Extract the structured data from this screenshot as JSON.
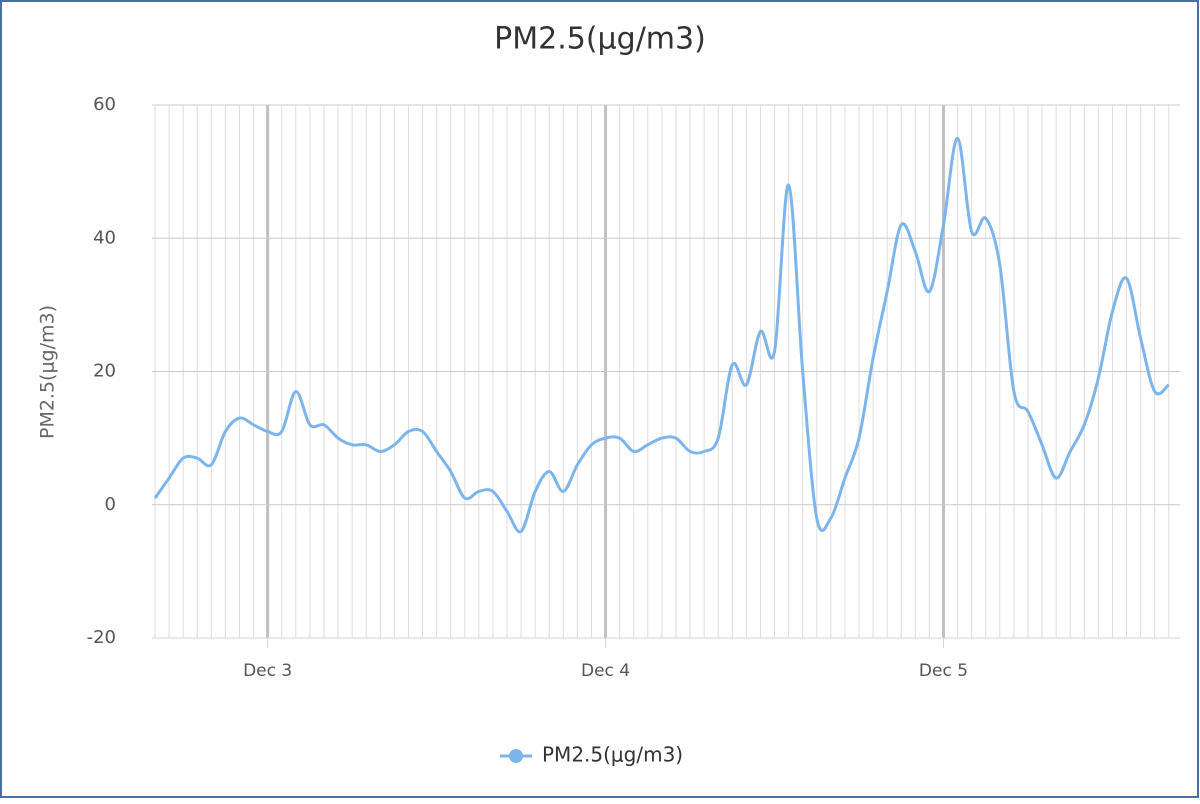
{
  "chart_data": {
    "type": "line",
    "title": "PM2.5(μg/m3)",
    "y_label": "PM2.5(μg/m3)",
    "categories": [
      null,
      null,
      null,
      null,
      null,
      null,
      null,
      null,
      "Dec 3",
      null,
      null,
      null,
      null,
      null,
      null,
      null,
      null,
      null,
      null,
      null,
      null,
      null,
      null,
      null,
      null,
      null,
      null,
      null,
      null,
      null,
      null,
      null,
      "Dec 4",
      null,
      null,
      null,
      null,
      null,
      null,
      null,
      null,
      null,
      null,
      null,
      null,
      null,
      null,
      null,
      null,
      null,
      null,
      null,
      null,
      null,
      null,
      null,
      "Dec 5",
      null,
      null,
      null,
      null,
      null,
      null,
      null,
      null,
      null,
      null,
      null,
      null,
      null,
      null,
      null,
      null
    ],
    "series": [
      {
        "name": "PM2.5(μg/m3)",
        "color": "#7cb5ec",
        "values": [
          1,
          4,
          7,
          7,
          6,
          11,
          13,
          12,
          11,
          11,
          17,
          12,
          12,
          10,
          9,
          9,
          8,
          9,
          11,
          11,
          8,
          5,
          1,
          2,
          2,
          -1,
          -4,
          2,
          5,
          2,
          6,
          9,
          10,
          10,
          8,
          9,
          10,
          10,
          8,
          8,
          10,
          21,
          18,
          26,
          23,
          48,
          20,
          -2,
          -2,
          4,
          10,
          22,
          32,
          42,
          38,
          32,
          42,
          55,
          41,
          43,
          36,
          17,
          14,
          9,
          4,
          8,
          12,
          19,
          29,
          34,
          25,
          17,
          18
        ]
      }
    ],
    "ylim": [
      -20,
      60
    ],
    "yticks": [
      -20,
      0,
      20,
      40,
      60
    ],
    "grid": true,
    "legend": "bottom"
  }
}
